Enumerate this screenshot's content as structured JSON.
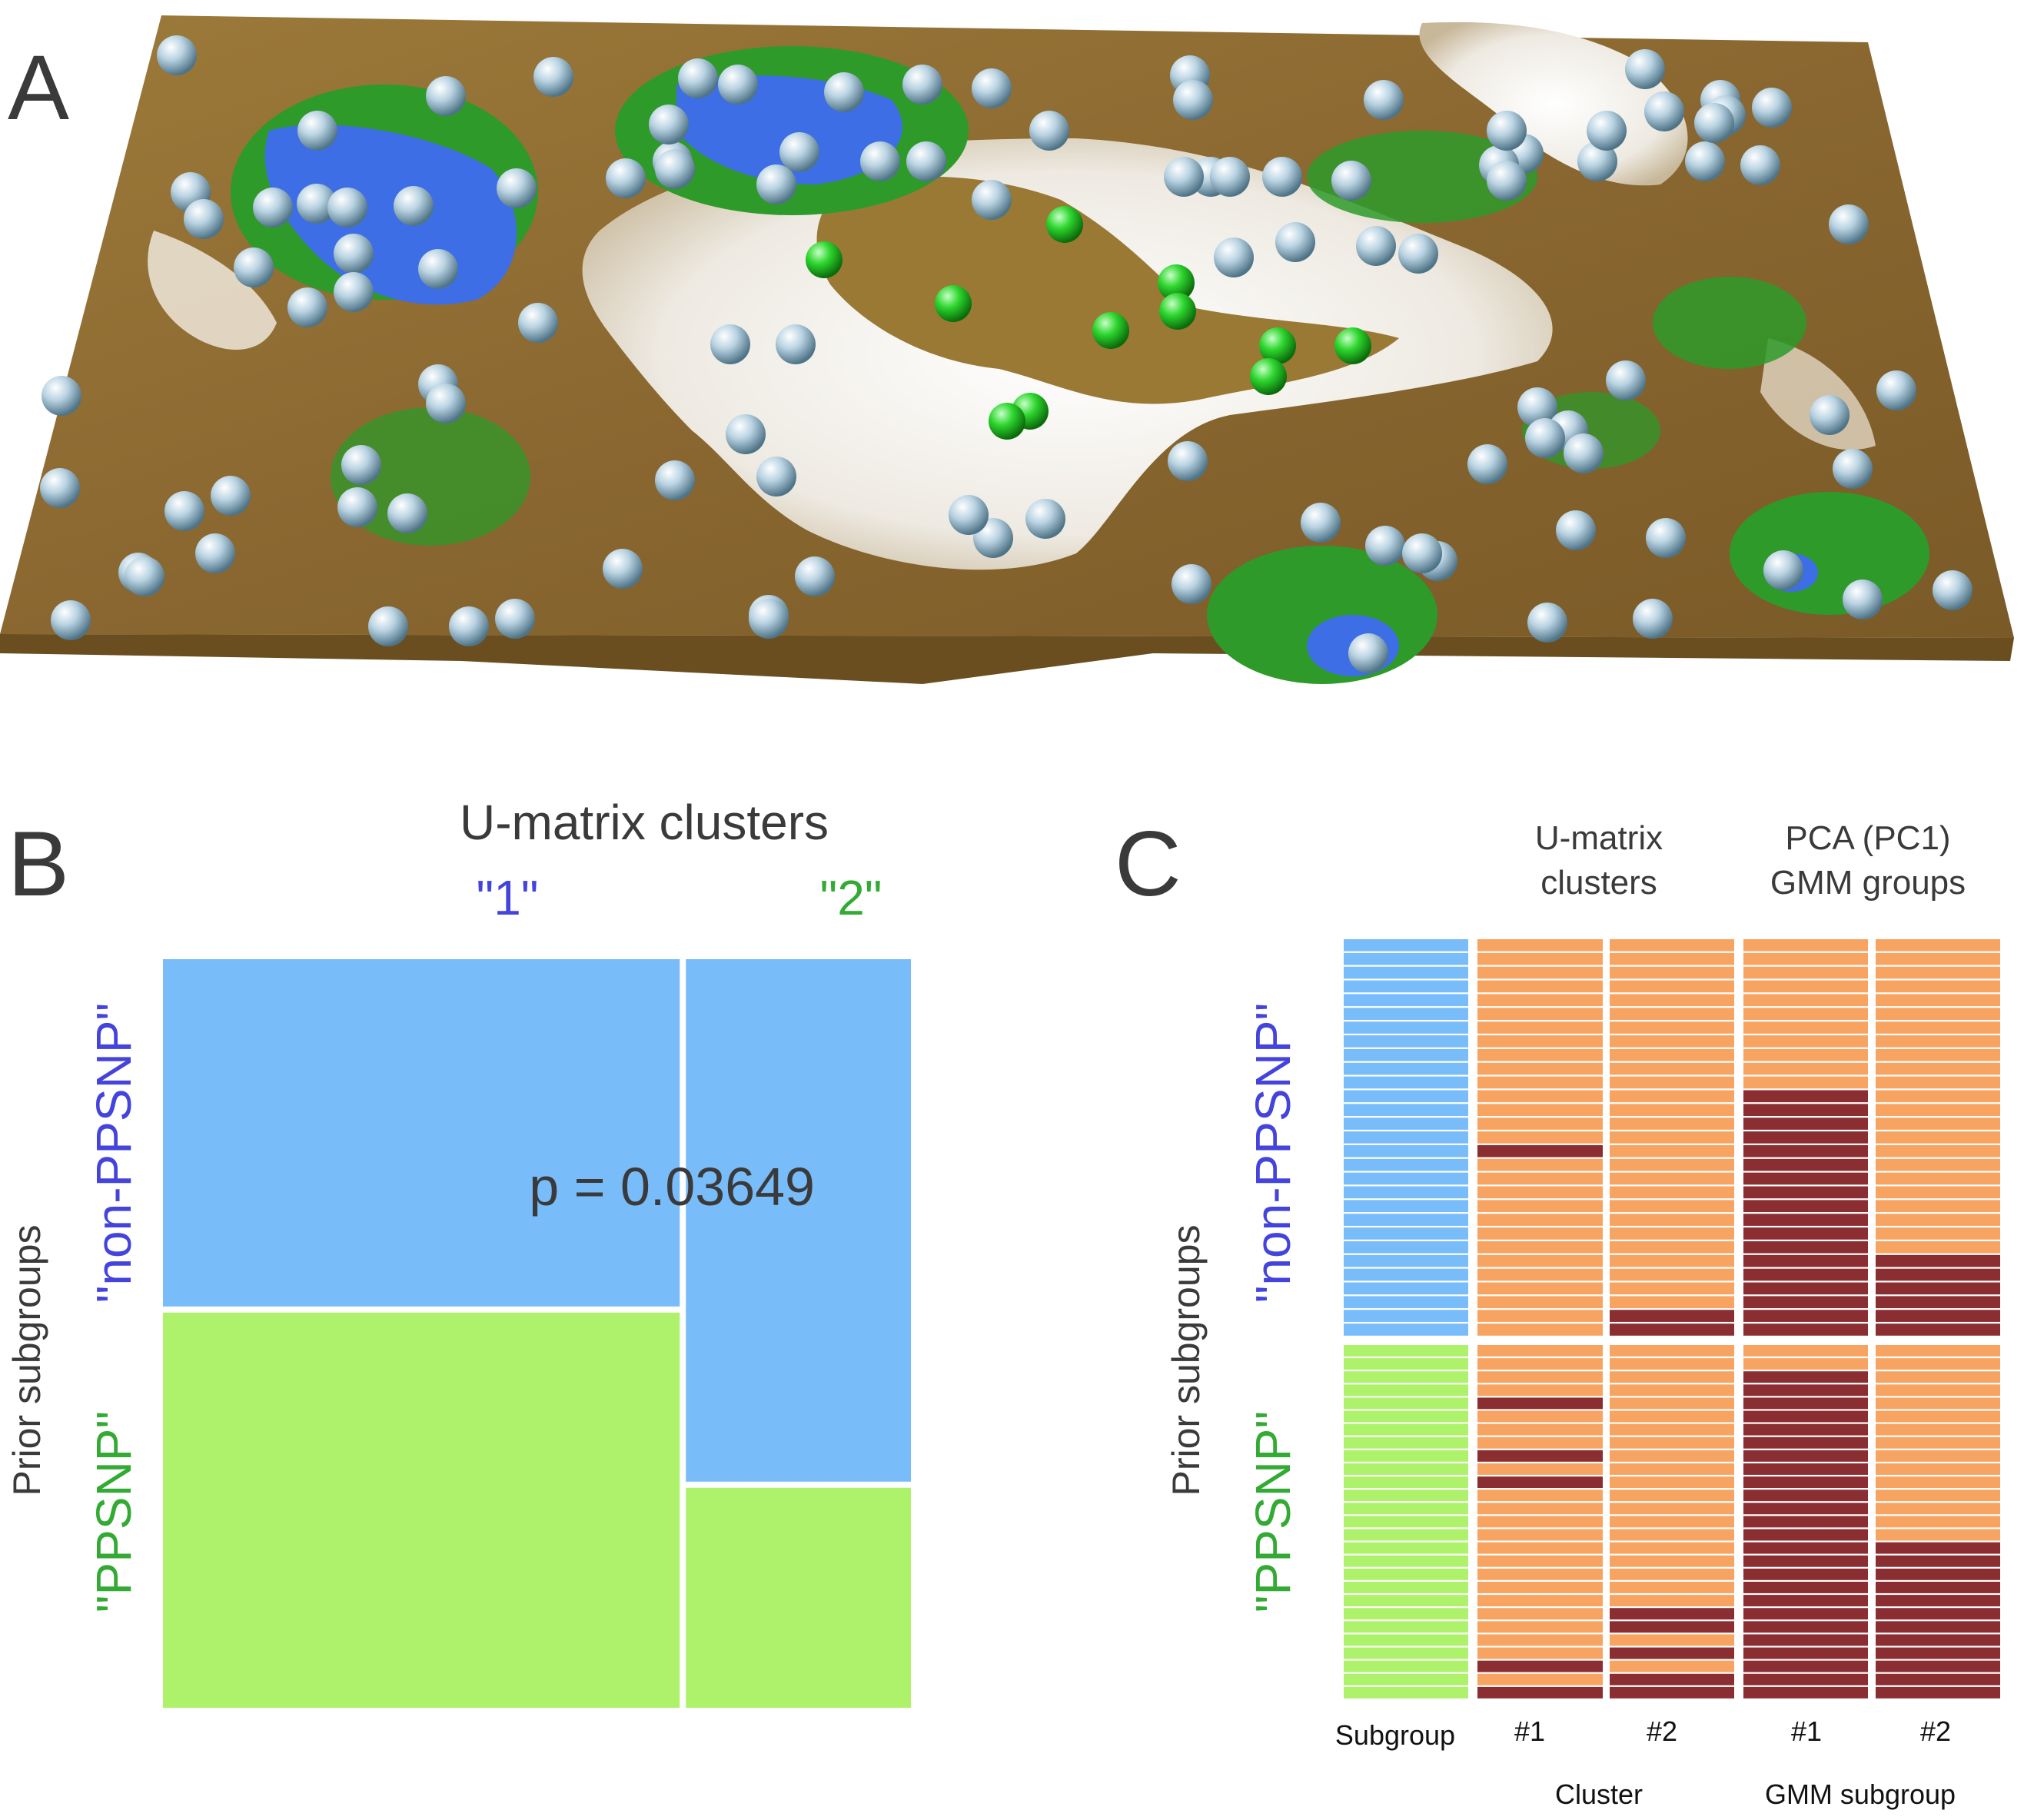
{
  "panels": {
    "a": "A",
    "b": "B",
    "c": "C"
  },
  "colors": {
    "blue_lake": "#3d6ee6",
    "green_shore": "#2e9a2a",
    "terrain": "#8d6a2e",
    "snow": "#f2efea",
    "sphere": "#a6c5d8",
    "sphere_green": "#2ecc2e",
    "mosaic_blue": "#78bcfa",
    "mosaic_green": "#adf26a",
    "label_blue": "#4444dd",
    "label_green": "#33aa33",
    "heat_orange": "#f7a462",
    "heat_dark": "#8b2e32"
  },
  "panel_b": {
    "title": "U-matrix clusters",
    "col_labels": [
      "\"1\"",
      "\"2\""
    ],
    "row_labels": [
      "\"non-PPSNP\"",
      "\"PPSNP\""
    ],
    "y_title": "Prior subgroups",
    "p_value": "p = 0.03649"
  },
  "panel_c": {
    "headers": {
      "umatrix": [
        "U-matrix",
        "clusters"
      ],
      "pca": [
        "PCA (PC1)",
        "GMM groups"
      ]
    },
    "y_title": "Prior subgroups",
    "row_labels": [
      "\"non-PPSNP\"",
      "\"PPSNP\""
    ],
    "x_labels": [
      "Subgroup",
      "#1",
      "#2",
      "#1",
      "#2"
    ],
    "group_labels": [
      "Cluster",
      "GMM subgroup"
    ]
  },
  "chart_data": [
    {
      "type": "other",
      "title": "3D U-matrix landscape",
      "description_values": {
        "grey_spheres": 118,
        "green_spheres": 11
      }
    },
    {
      "type": "mosaic",
      "title": "U-matrix clusters",
      "x_categories": [
        "1",
        "2"
      ],
      "y_categories": [
        "non-PPSNP",
        "PPSNP"
      ],
      "counts": [
        [
          29,
          19
        ],
        [
          33,
          8
        ]
      ],
      "xlabel": "U-matrix clusters",
      "ylabel": "Prior subgroups",
      "annotation": "p = 0.03649"
    },
    {
      "type": "heatmap",
      "rows_per_group": {
        "non-PPSNP": 29,
        "PPSNP": 27
      },
      "columns": [
        "Subgroup",
        "Cluster #1",
        "Cluster #2",
        "GMM #1",
        "GMM #2"
      ],
      "non_ppsnp": {
        "cluster1": [
          0,
          0,
          0,
          0,
          0,
          0,
          0,
          0,
          0,
          0,
          0,
          0,
          0,
          0,
          0,
          1,
          0,
          0,
          0,
          0,
          0,
          0,
          0,
          0,
          0,
          0,
          0,
          0,
          0
        ],
        "cluster2": [
          0,
          0,
          0,
          0,
          0,
          0,
          0,
          0,
          0,
          0,
          0,
          0,
          0,
          0,
          0,
          0,
          0,
          0,
          0,
          0,
          0,
          0,
          0,
          0,
          0,
          0,
          0,
          1,
          1
        ],
        "gmm1": [
          0,
          0,
          0,
          0,
          0,
          0,
          0,
          0,
          0,
          0,
          0,
          1,
          1,
          1,
          1,
          1,
          1,
          1,
          1,
          1,
          1,
          1,
          1,
          1,
          1,
          1,
          1,
          1,
          1
        ],
        "gmm2": [
          0,
          0,
          0,
          0,
          0,
          0,
          0,
          0,
          0,
          0,
          0,
          0,
          0,
          0,
          0,
          0,
          0,
          0,
          0,
          0,
          0,
          0,
          0,
          1,
          1,
          1,
          1,
          1,
          1
        ]
      },
      "ppsnp": {
        "cluster1": [
          0,
          0,
          0,
          0,
          1,
          0,
          0,
          0,
          1,
          0,
          1,
          0,
          0,
          0,
          0,
          0,
          0,
          0,
          0,
          0,
          0,
          0,
          0,
          0,
          1,
          0,
          1
        ],
        "cluster2": [
          0,
          0,
          0,
          0,
          0,
          0,
          0,
          0,
          0,
          0,
          0,
          0,
          0,
          0,
          0,
          0,
          0,
          0,
          0,
          0,
          1,
          1,
          0,
          1,
          0,
          1,
          1
        ],
        "gmm1": [
          0,
          0,
          1,
          1,
          1,
          1,
          1,
          1,
          1,
          1,
          1,
          1,
          1,
          1,
          1,
          1,
          1,
          1,
          1,
          1,
          1,
          1,
          1,
          1,
          1,
          1,
          1
        ],
        "gmm2": [
          0,
          0,
          0,
          0,
          0,
          0,
          0,
          0,
          0,
          0,
          0,
          0,
          0,
          0,
          0,
          1,
          1,
          1,
          1,
          1,
          1,
          1,
          1,
          1,
          1,
          1,
          1
        ]
      }
    }
  ]
}
